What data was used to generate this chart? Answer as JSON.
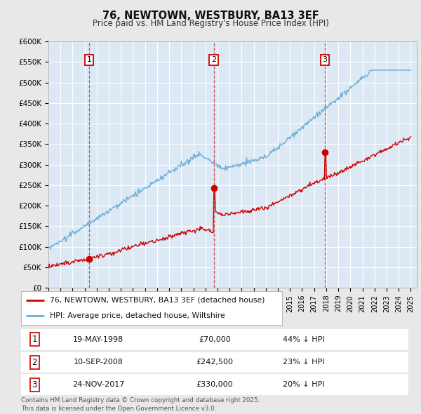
{
  "title": "76, NEWTOWN, WESTBURY, BA13 3EF",
  "subtitle": "Price paid vs. HM Land Registry's House Price Index (HPI)",
  "fig_bg_color": "#e8e8e8",
  "plot_bg_color": "#dce9f5",
  "grid_color": "#ffffff",
  "ylim": [
    0,
    600000
  ],
  "yticks": [
    0,
    50000,
    100000,
    150000,
    200000,
    250000,
    300000,
    350000,
    400000,
    450000,
    500000,
    550000,
    600000
  ],
  "ytick_labels": [
    "£0",
    "£50K",
    "£100K",
    "£150K",
    "£200K",
    "£250K",
    "£300K",
    "£350K",
    "£400K",
    "£450K",
    "£500K",
    "£550K",
    "£600K"
  ],
  "sale_color": "#cc0000",
  "hpi_color": "#6baed6",
  "dashed_line_color": "#cc3333",
  "sale1_date": 1998.38,
  "sale1_price": 70000,
  "sale2_date": 2008.69,
  "sale2_price": 242500,
  "sale3_date": 2017.9,
  "sale3_price": 330000,
  "footer_text": "Contains HM Land Registry data © Crown copyright and database right 2025.\nThis data is licensed under the Open Government Licence v3.0.",
  "legend1_text": "76, NEWTOWN, WESTBURY, BA13 3EF (detached house)",
  "legend2_text": "HPI: Average price, detached house, Wiltshire",
  "table_rows": [
    [
      "1",
      "19-MAY-1998",
      "£70,000",
      "44% ↓ HPI"
    ],
    [
      "2",
      "10-SEP-2008",
      "£242,500",
      "23% ↓ HPI"
    ],
    [
      "3",
      "24-NOV-2017",
      "£330,000",
      "20% ↓ HPI"
    ]
  ]
}
